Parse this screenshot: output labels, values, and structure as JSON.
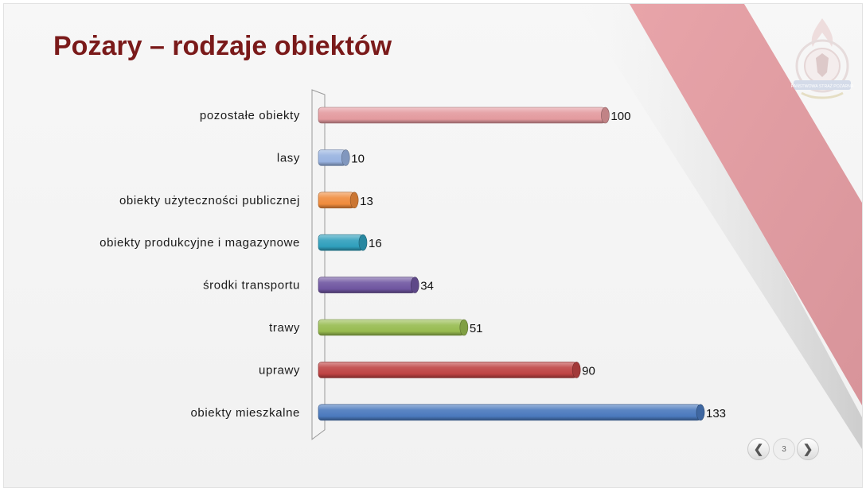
{
  "slide": {
    "title": "Pożary – rodzaje obiektów",
    "page_number": "3",
    "nav": {
      "prev_icon": "chevron-left-icon",
      "next_icon": "chevron-right-icon"
    },
    "logo_text": "PAŃSTWOWA STRAŻ POŻARNA",
    "colors": {
      "title": "#7a1a1a",
      "decor_band": "#dd9aa0",
      "decor_shadow": "#cfcfcf"
    }
  },
  "chart_data": {
    "type": "bar",
    "orientation": "horizontal",
    "style": "3d-cylinder",
    "title": "",
    "xlabel": "",
    "ylabel": "",
    "grid": false,
    "legend": "none",
    "xlim": [
      0,
      133
    ],
    "categories": [
      "pozostałe obiekty",
      "lasy",
      "obiekty użyteczności publicznej",
      "obiekty produkcyjne i magazynowe",
      "środki transportu",
      "trawy",
      "uprawy",
      "obiekty mieszkalne"
    ],
    "values": [
      100,
      10,
      13,
      16,
      34,
      51,
      90,
      133
    ],
    "colors": [
      "#e39a9e",
      "#98b2e0",
      "#ef8b3c",
      "#2f9fbc",
      "#6f55a0",
      "#97bb4f",
      "#bf4343",
      "#4a79bd"
    ]
  }
}
